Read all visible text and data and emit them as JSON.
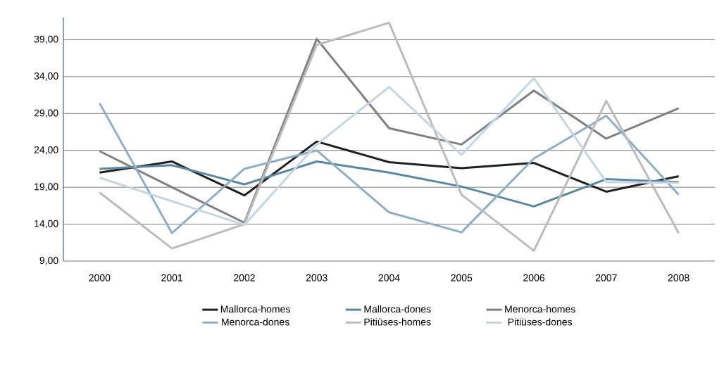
{
  "chart_data": {
    "type": "line",
    "categories": [
      "2000",
      "2001",
      "2002",
      "2003",
      "2004",
      "2005",
      "2006",
      "2007",
      "2008"
    ],
    "ylim": [
      9,
      42
    ],
    "yticks": [
      {
        "value": 9,
        "label": "9,00"
      },
      {
        "value": 14,
        "label": "14,00"
      },
      {
        "value": 19,
        "label": "19,00"
      },
      {
        "value": 24,
        "label": "24,00"
      },
      {
        "value": 29,
        "label": "29,00"
      },
      {
        "value": 34,
        "label": "34,00"
      },
      {
        "value": 39,
        "label": "39,00"
      }
    ],
    "grid": "y",
    "legend": "bottom",
    "marker": "none",
    "line_style": "solid",
    "series": [
      {
        "name": "Mallorca-homes",
        "color": "#231f20",
        "values": [
          21.0,
          22.5,
          17.9,
          25.2,
          22.4,
          21.6,
          22.3,
          18.4,
          20.5
        ]
      },
      {
        "name": "Mallorca-dones",
        "color": "#5a88a2",
        "values": [
          21.5,
          22.0,
          19.4,
          22.5,
          21.0,
          19.1,
          16.4,
          20.1,
          19.7
        ]
      },
      {
        "name": "Menorca-homes",
        "color": "#808083",
        "values": [
          23.9,
          19.0,
          14.2,
          39.1,
          27.0,
          24.8,
          32.1,
          25.6,
          29.7
        ]
      },
      {
        "name": "Menorca-dones",
        "color": "#8fafc6",
        "values": [
          30.4,
          12.8,
          21.5,
          24.0,
          15.6,
          12.9,
          22.9,
          28.7,
          18.0
        ]
      },
      {
        "name": "Pitiüses-homes",
        "color": "#bcbcbf",
        "values": [
          18.3,
          10.7,
          14.0,
          38.3,
          41.3,
          18.0,
          10.4,
          30.7,
          12.8
        ]
      },
      {
        "name": "Pitiüses-dones",
        "color": "#c5d5e2",
        "values": [
          20.3,
          17.1,
          13.9,
          24.8,
          32.6,
          23.4,
          33.8,
          19.7,
          19.6
        ]
      }
    ]
  }
}
